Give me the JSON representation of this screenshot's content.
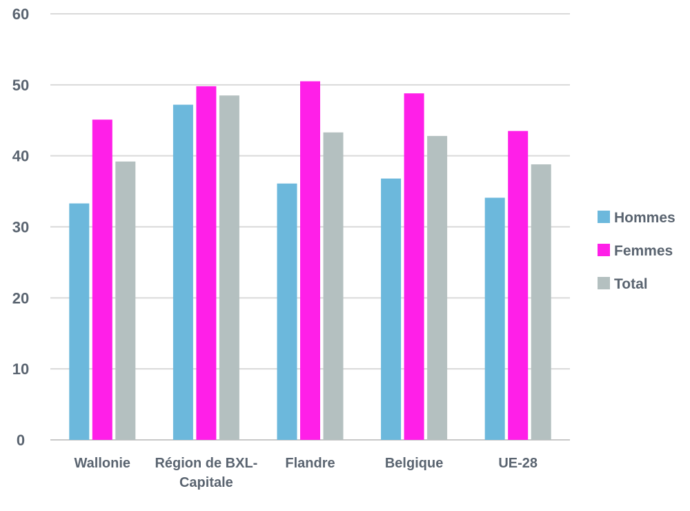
{
  "chart_data": {
    "type": "bar",
    "categories": [
      [
        "Wallonie"
      ],
      [
        "Région de BXL-",
        "Capitale"
      ],
      [
        "Flandre"
      ],
      [
        "Belgique"
      ],
      [
        "UE-28"
      ]
    ],
    "series": [
      {
        "name": "Hommes",
        "color": "#6cb8dc",
        "values": [
          33.3,
          47.2,
          36.1,
          36.8,
          34.1
        ]
      },
      {
        "name": "Femmes",
        "color": "#ff1fe8",
        "values": [
          45.1,
          49.8,
          50.5,
          48.8,
          43.5
        ]
      },
      {
        "name": "Total",
        "color": "#b4c0c0",
        "values": [
          39.2,
          48.5,
          43.3,
          42.8,
          38.8
        ]
      }
    ],
    "ylim": [
      0,
      60
    ],
    "yticks": [
      0,
      10,
      20,
      30,
      40,
      50,
      60
    ],
    "grid": true,
    "legend_position": "right",
    "title": "",
    "xlabel": "",
    "ylabel": ""
  }
}
